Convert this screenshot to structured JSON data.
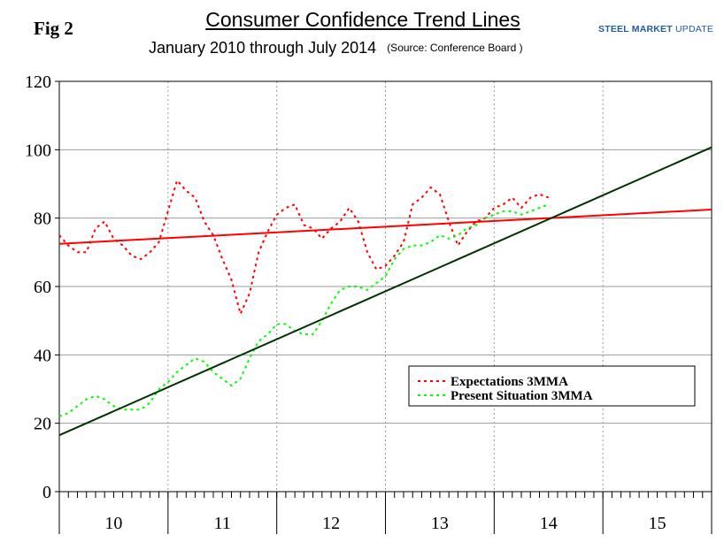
{
  "header": {
    "fig_label": "Fig 2",
    "title": "Consumer Confidence Trend Lines",
    "subtitle": "January 2010 through July 2014",
    "source": "(Source: Conference Board )",
    "brand_bold": "STEEL MARKET",
    "brand_thin": " UPDATE"
  },
  "chart_data": {
    "type": "line",
    "title": "Consumer Confidence Trend Lines",
    "xlabel": "",
    "ylabel": "",
    "ylim": [
      0,
      120
    ],
    "yticks": [
      0,
      20,
      40,
      60,
      80,
      100,
      120
    ],
    "x_unit": "months since Jan 2010",
    "xlim": [
      0,
      72
    ],
    "year_labels": [
      "10",
      "11",
      "12",
      "13",
      "14",
      "15"
    ],
    "grid": true,
    "legend_position": "lower-right",
    "series": [
      {
        "name": "Expectations 3MMA",
        "style": "dotted",
        "color": "#ff0000",
        "x": [
          0,
          1,
          2,
          3,
          4,
          5,
          6,
          7,
          8,
          9,
          10,
          11,
          12,
          13,
          14,
          15,
          16,
          17,
          18,
          19,
          20,
          21,
          22,
          23,
          24,
          25,
          26,
          27,
          28,
          29,
          30,
          31,
          32,
          33,
          34,
          35,
          36,
          37,
          38,
          39,
          40,
          41,
          42,
          43,
          44,
          45,
          46,
          47,
          48,
          49,
          50,
          51,
          52,
          53,
          54
        ],
        "values": [
          75,
          72,
          70,
          70,
          77,
          79,
          74,
          72,
          69,
          68,
          70,
          73,
          82,
          91,
          88,
          86,
          79,
          75,
          68,
          62,
          52,
          58,
          70,
          76,
          81,
          83,
          84,
          78,
          77,
          74,
          77,
          79,
          83,
          79,
          70,
          65,
          66,
          69,
          73,
          84,
          86,
          89,
          87,
          79,
          72,
          76,
          79,
          80,
          83,
          84,
          86,
          83,
          86,
          87,
          86
        ]
      },
      {
        "name": "Present Situation 3MMA",
        "style": "dotted",
        "color": "#00ff00",
        "x": [
          0,
          1,
          2,
          3,
          4,
          5,
          6,
          7,
          8,
          9,
          10,
          11,
          12,
          13,
          14,
          15,
          16,
          17,
          18,
          19,
          20,
          21,
          22,
          23,
          24,
          25,
          26,
          27,
          28,
          29,
          30,
          31,
          32,
          33,
          34,
          35,
          36,
          37,
          38,
          39,
          40,
          41,
          42,
          43,
          44,
          45,
          46,
          47,
          48,
          49,
          50,
          51,
          52,
          53,
          54
        ],
        "values": [
          22,
          23,
          25,
          27,
          28,
          27,
          25,
          24,
          24,
          24,
          26,
          30,
          32,
          35,
          37,
          39,
          38,
          35,
          33,
          31,
          33,
          39,
          44,
          46,
          49,
          49,
          47,
          46,
          46,
          50,
          55,
          59,
          60,
          60,
          59,
          61,
          63,
          68,
          71,
          72,
          72,
          73,
          75,
          74,
          75,
          77,
          78,
          80,
          81,
          82,
          82,
          81,
          82,
          83,
          84
        ]
      },
      {
        "name": "Expectations trend",
        "style": "solid",
        "color": "#ff0000",
        "x": [
          0,
          72
        ],
        "values": [
          72.5,
          82.5
        ]
      },
      {
        "name": "Present Situation trend",
        "style": "solid",
        "color": "#003300",
        "x": [
          0,
          72
        ],
        "values": [
          16.5,
          100.7
        ]
      }
    ]
  }
}
